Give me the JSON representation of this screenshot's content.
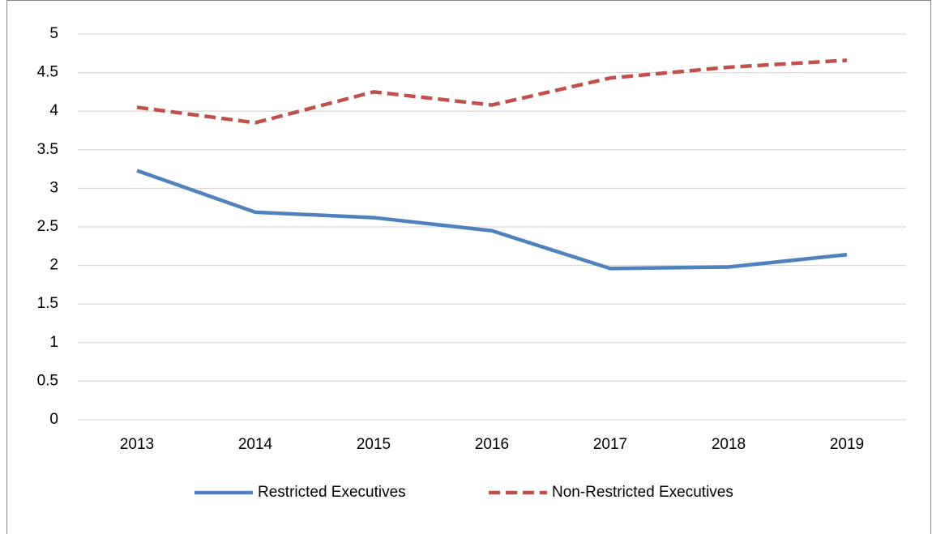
{
  "chart_data": {
    "type": "line",
    "categories": [
      "2013",
      "2014",
      "2015",
      "2016",
      "2017",
      "2018",
      "2019"
    ],
    "series": [
      {
        "name": "Restricted Executives",
        "color": "#4f81bd",
        "line_style": "solid",
        "values": [
          3.23,
          2.69,
          2.62,
          2.45,
          1.96,
          1.98,
          2.14
        ]
      },
      {
        "name": "Non-Restricted Executives",
        "color": "#c0504d",
        "line_style": "dashed",
        "values": [
          4.05,
          3.85,
          4.25,
          4.08,
          4.43,
          4.57,
          4.66
        ]
      }
    ],
    "ylim": [
      0,
      5
    ],
    "yticks": [
      0,
      0.5,
      1,
      1.5,
      2,
      2.5,
      3,
      3.5,
      4,
      4.5,
      5
    ],
    "grid": true,
    "legend": "bottom"
  }
}
